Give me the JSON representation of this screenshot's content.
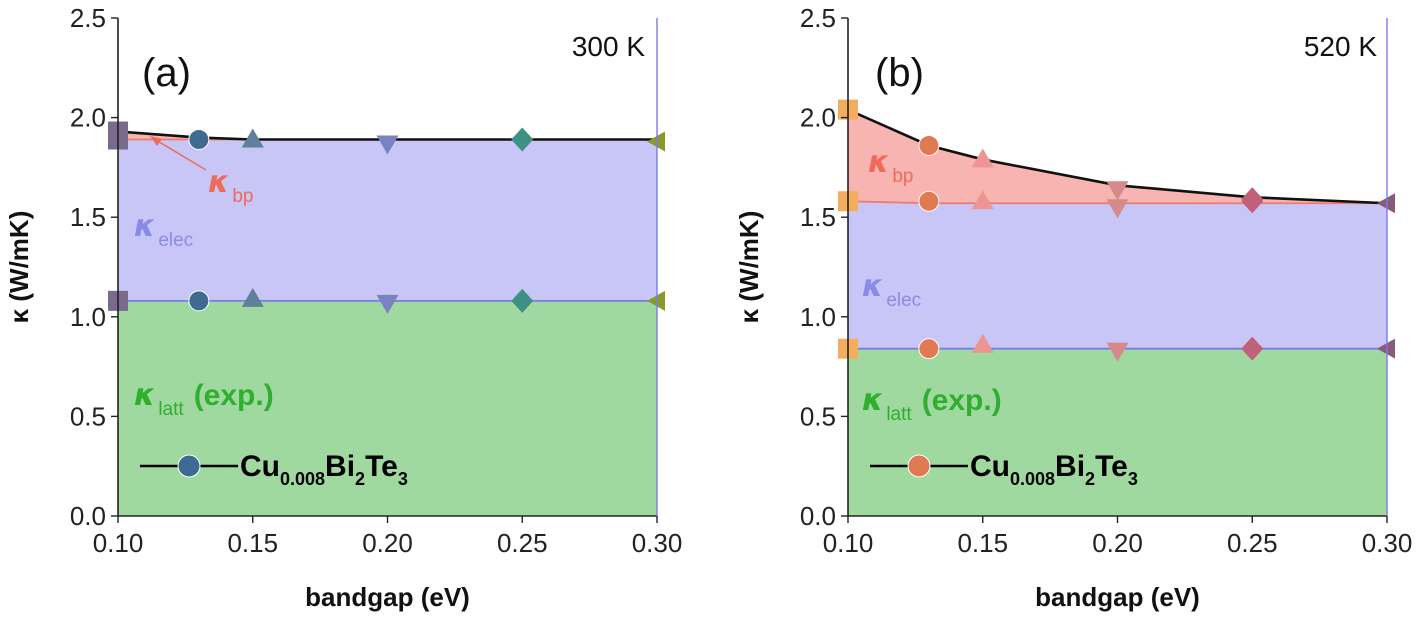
{
  "chart_data": [
    {
      "type": "area",
      "panel_label": "(a)",
      "temperature": "300 K",
      "xlabel": "bandgap (eV)",
      "ylabel": "κ (W/mK)",
      "xlim": [
        0.1,
        0.3
      ],
      "ylim": [
        0.0,
        2.5
      ],
      "x_ticks": [
        "0.10",
        "0.15",
        "0.20",
        "0.25",
        "0.30"
      ],
      "y_ticks": [
        "0.0",
        "0.5",
        "1.0",
        "1.5",
        "2.0",
        "2.5"
      ],
      "x": [
        0.1,
        0.13,
        0.15,
        0.2,
        0.25,
        0.3
      ],
      "series": [
        {
          "name": "κlatt (exp.)",
          "values": [
            1.08,
            1.08,
            1.08,
            1.08,
            1.08,
            1.08
          ],
          "color": "#9fd99f"
        },
        {
          "name": "κelec",
          "values": [
            1.89,
            1.89,
            1.89,
            1.89,
            1.89,
            1.89
          ],
          "color": "#c8c6f6"
        },
        {
          "name": "κbp",
          "values": [
            1.93,
            1.9,
            1.89,
            1.89,
            1.89,
            1.89
          ],
          "color": "#f7b4b0"
        }
      ],
      "markers": [
        {
          "x": 0.1,
          "shape": "square",
          "color": "#7a6a8e",
          "at": [
            1.08,
            1.89,
            1.93
          ]
        },
        {
          "x": 0.13,
          "shape": "circle",
          "color": "#3f6a92",
          "at": [
            1.08,
            1.89
          ]
        },
        {
          "x": 0.15,
          "shape": "triangle-up",
          "color": "#5f7f9a",
          "at": [
            1.09,
            1.89
          ]
        },
        {
          "x": 0.2,
          "shape": "triangle-down",
          "color": "#7a82bf",
          "at": [
            1.07,
            1.87
          ]
        },
        {
          "x": 0.25,
          "shape": "diamond",
          "color": "#3f9084",
          "at": [
            1.08,
            1.89
          ]
        },
        {
          "x": 0.3,
          "shape": "triangle-left",
          "color": "#8a9a2a",
          "at": [
            1.08,
            1.88
          ]
        }
      ],
      "labels": {
        "elec": {
          "symbol": "κ",
          "sub": "elec",
          "color": "#8a8ae8"
        },
        "latt": {
          "symbol": "κ",
          "sub": "latt",
          "suffix": "(exp.)",
          "color": "#2fae2f"
        },
        "bp": {
          "symbol": "κ",
          "sub": "bp",
          "color": "#f06a5a"
        }
      },
      "legend": {
        "main": "Cu",
        "sub1": "0.008",
        "main2": "Bi",
        "sub2": "2",
        "main3": "Te",
        "sub3": "3",
        "marker_color": "#3f6a92"
      }
    },
    {
      "type": "area",
      "panel_label": "(b)",
      "temperature": "520 K",
      "xlabel": "bandgap (eV)",
      "ylabel": "κ (W/mK)",
      "xlim": [
        0.1,
        0.3
      ],
      "ylim": [
        0.0,
        2.5
      ],
      "x_ticks": [
        "0.10",
        "0.15",
        "0.20",
        "0.25",
        "0.30"
      ],
      "y_ticks": [
        "0.0",
        "0.5",
        "1.0",
        "1.5",
        "2.0",
        "2.5"
      ],
      "x": [
        0.1,
        0.13,
        0.15,
        0.2,
        0.25,
        0.3
      ],
      "series": [
        {
          "name": "κlatt (exp.)",
          "values": [
            0.84,
            0.84,
            0.84,
            0.84,
            0.84,
            0.84
          ],
          "color": "#9fd99f"
        },
        {
          "name": "κelec",
          "values": [
            1.58,
            1.57,
            1.57,
            1.57,
            1.57,
            1.57
          ],
          "color": "#c8c6f6"
        },
        {
          "name": "κbp",
          "values": [
            2.04,
            1.86,
            1.79,
            1.66,
            1.6,
            1.57
          ],
          "color": "#f7b4b0"
        }
      ],
      "markers": [
        {
          "x": 0.1,
          "shape": "square",
          "color": "#f3ad5c",
          "at": [
            0.84,
            1.58,
            2.04
          ]
        },
        {
          "x": 0.13,
          "shape": "circle",
          "color": "#e07a52",
          "at": [
            0.84,
            1.58,
            1.86
          ]
        },
        {
          "x": 0.15,
          "shape": "triangle-up",
          "color": "#ee9494",
          "at": [
            0.86,
            1.58,
            1.79
          ]
        },
        {
          "x": 0.2,
          "shape": "triangle-down",
          "color": "#d48a8a",
          "at": [
            0.83,
            1.55,
            1.64
          ]
        },
        {
          "x": 0.25,
          "shape": "diamond",
          "color": "#c0607a",
          "at": [
            0.84,
            1.58,
            1.59
          ]
        },
        {
          "x": 0.3,
          "shape": "triangle-left",
          "color": "#8a5a7a",
          "at": [
            0.84,
            1.57
          ]
        }
      ],
      "labels": {
        "elec": {
          "symbol": "κ",
          "sub": "elec",
          "color": "#8a8ae8"
        },
        "latt": {
          "symbol": "κ",
          "sub": "latt",
          "suffix": "(exp.)",
          "color": "#2fae2f"
        },
        "bp": {
          "symbol": "κ",
          "sub": "bp",
          "color": "#f06a5a"
        }
      },
      "legend": {
        "main": "Cu",
        "sub1": "0.008",
        "main2": "Bi",
        "sub2": "2",
        "main3": "Te",
        "sub3": "3",
        "marker_color": "#e07a52"
      }
    }
  ]
}
